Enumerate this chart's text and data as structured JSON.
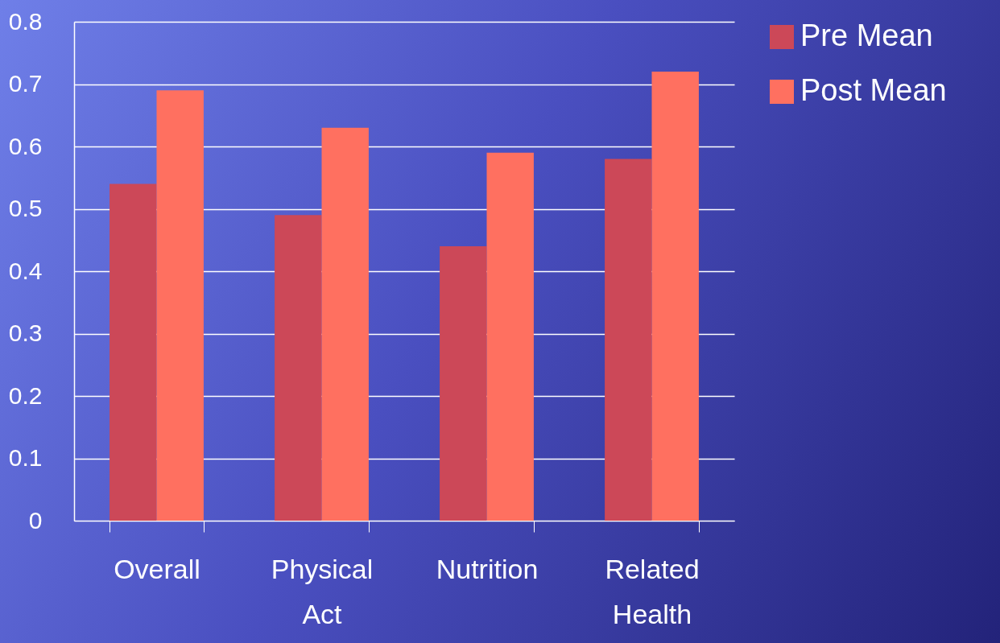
{
  "chart_data": {
    "type": "bar",
    "categories": [
      "Overall",
      "Physical Act",
      "Nutrition",
      "Related Health"
    ],
    "series": [
      {
        "name": "Pre Mean",
        "color": "#cc4858",
        "values": [
          0.54,
          0.49,
          0.44,
          0.58
        ]
      },
      {
        "name": "Post Mean",
        "color": "#ff7060",
        "values": [
          0.69,
          0.63,
          0.59,
          0.72
        ]
      }
    ],
    "ylim": [
      0,
      0.8
    ],
    "yticks": [
      0,
      0.1,
      0.2,
      0.3,
      0.4,
      0.5,
      0.6,
      0.7,
      0.8
    ],
    "grid": "y",
    "legend": "right"
  }
}
